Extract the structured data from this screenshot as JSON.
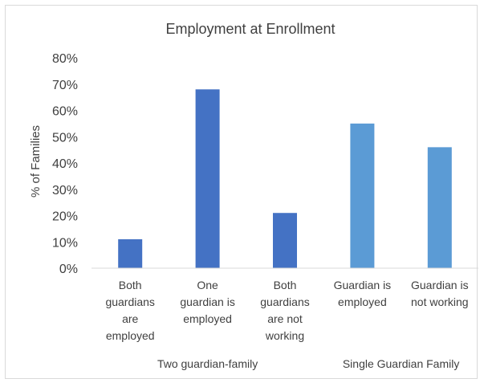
{
  "chart_data": {
    "type": "bar",
    "title": "Employment at Enrollment",
    "ylabel": "% of Families",
    "xlabel": "",
    "ylim": [
      0,
      80
    ],
    "yticks": [
      "0%",
      "10%",
      "20%",
      "30%",
      "40%",
      "50%",
      "60%",
      "70%",
      "80%"
    ],
    "grid": false,
    "legend": "none",
    "categories": [
      [
        "Both",
        "guardians",
        "are",
        "employed"
      ],
      [
        "One",
        "guardian is",
        "employed"
      ],
      [
        "Both",
        "guardians",
        "are not",
        "working"
      ],
      [
        "Guardian is",
        "employed"
      ],
      [
        "Guardian is",
        "not working"
      ]
    ],
    "values": [
      11,
      68,
      21,
      55,
      46
    ],
    "groups": [
      {
        "label": "Two guardian-family",
        "indices": [
          0,
          1,
          2
        ]
      },
      {
        "label": "Single Guardian Family",
        "indices": [
          3,
          4
        ]
      }
    ],
    "colors": [
      "#4472c4",
      "#4472c4",
      "#4472c4",
      "#5b9bd5",
      "#5b9bd5"
    ]
  }
}
